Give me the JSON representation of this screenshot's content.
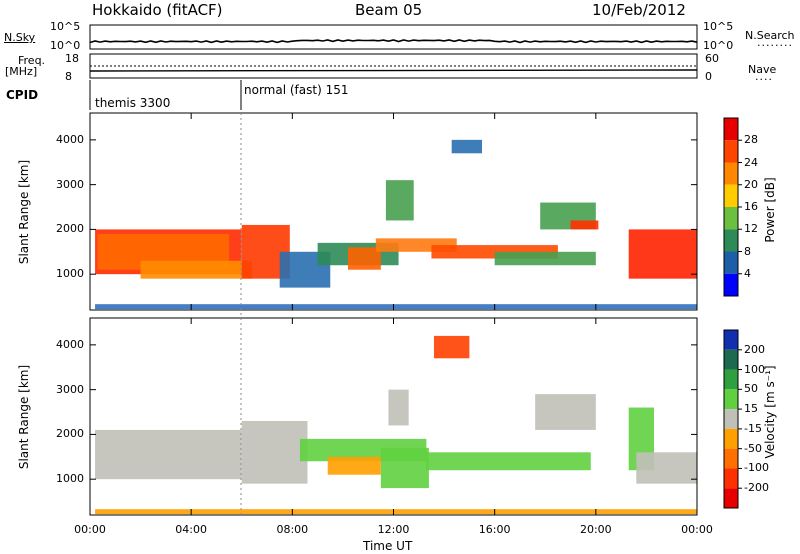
{
  "header": {
    "station": "Hokkaido (fitACF)",
    "beam": "Beam 05",
    "date": "10/Feb/2012"
  },
  "nsky_panel": {
    "label": "N.Sky",
    "right_label": "N.Search",
    "ticks_left": [
      "10^5",
      "10^0"
    ],
    "ticks_right": [
      "10^5",
      "10^0"
    ]
  },
  "freq_panel": {
    "label_line1": "Freq.",
    "label_line2": "[MHz]",
    "right_label": "Nave",
    "ticks_left": [
      "18",
      "8"
    ],
    "ticks_right": [
      "60",
      "0"
    ]
  },
  "cpid_panel": {
    "label": "CPID",
    "modes": [
      {
        "name": "themis 3300",
        "start_hour": 0
      },
      {
        "name": "normal (fast) 151",
        "start_hour": 6
      }
    ]
  },
  "chart_data": [
    {
      "type": "heatmap",
      "name": "power",
      "ylabel": "Slant Range [km]",
      "ylim": [
        200,
        4600
      ],
      "yticks": [
        1000,
        2000,
        3000,
        4000
      ],
      "xlim": [
        0,
        24
      ],
      "colorbar": {
        "label": "Power [dB]",
        "ticks": [
          "28",
          "24",
          "20",
          "16",
          "12",
          "8",
          "4"
        ],
        "colors": [
          "#e80000",
          "#ff4400",
          "#ff8800",
          "#ffcc00",
          "#6cc040",
          "#2e8b57",
          "#1c5fa8",
          "#0000ff"
        ]
      }
    },
    {
      "type": "heatmap",
      "name": "velocity",
      "ylabel": "Slant Range [km]",
      "ylim": [
        200,
        4600
      ],
      "yticks": [
        1000,
        2000,
        3000,
        4000
      ],
      "xlim": [
        0,
        24
      ],
      "xlabel": "Time UT",
      "xticks": [
        "00:00",
        "04:00",
        "08:00",
        "12:00",
        "16:00",
        "20:00",
        "00:00"
      ],
      "colorbar": {
        "label": "Velocity [m s⁻¹]",
        "ticks": [
          "200",
          "100",
          "50",
          "15",
          "-15",
          "-50",
          "-100",
          "-200"
        ],
        "colors": [
          "#1030b0",
          "#1d6a50",
          "#2fa040",
          "#60d040",
          "#c0c0b8",
          "#ffa000",
          "#ff7000",
          "#ff3000",
          "#e80000"
        ]
      }
    }
  ]
}
